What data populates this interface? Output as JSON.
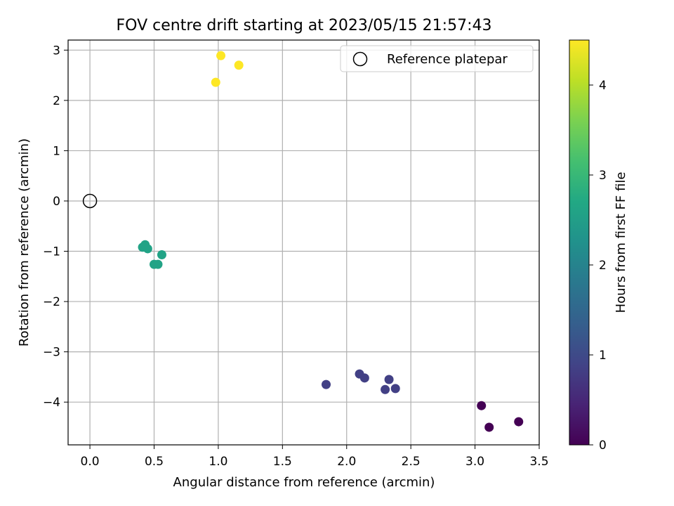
{
  "chart_data": {
    "type": "scatter",
    "title": "FOV centre drift starting at 2023/05/15 21:57:43",
    "xlabel": "Angular distance from reference (arcmin)",
    "ylabel": "Rotation from reference (arcmin)",
    "xlim": [
      -0.17,
      3.5
    ],
    "ylim": [
      -4.85,
      3.2
    ],
    "xticks": [
      0.0,
      0.5,
      1.0,
      1.5,
      2.0,
      2.5,
      3.0,
      3.5
    ],
    "xtick_labels": [
      "0.0",
      "0.5",
      "1.0",
      "1.5",
      "2.0",
      "2.5",
      "3.0",
      "3.5"
    ],
    "yticks": [
      -4,
      -3,
      -2,
      -1,
      0,
      1,
      2,
      3
    ],
    "ytick_labels": [
      "−4",
      "−3",
      "−2",
      "−1",
      "0",
      "1",
      "2",
      "3"
    ],
    "grid": true,
    "legend": {
      "location": "upper right",
      "entries": [
        "Reference platepar"
      ]
    },
    "reference_point": {
      "label": "Reference platepar",
      "x": 0.0,
      "y": 0.0
    },
    "colorbar": {
      "label": "Hours from first FF file",
      "colormap": "viridis",
      "range": [
        0,
        4.5
      ],
      "ticks": [
        0,
        1,
        2,
        3,
        4
      ],
      "tick_labels": [
        "0",
        "1",
        "2",
        "3",
        "4"
      ]
    },
    "points": [
      {
        "x": 3.05,
        "y": -4.07,
        "hours": 0.0
      },
      {
        "x": 3.11,
        "y": -4.5,
        "hours": 0.0
      },
      {
        "x": 3.34,
        "y": -4.39,
        "hours": 0.0
      },
      {
        "x": 1.84,
        "y": -3.65,
        "hours": 0.85
      },
      {
        "x": 2.1,
        "y": -3.44,
        "hours": 0.85
      },
      {
        "x": 2.14,
        "y": -3.52,
        "hours": 0.85
      },
      {
        "x": 2.33,
        "y": -3.55,
        "hours": 0.85
      },
      {
        "x": 2.3,
        "y": -3.75,
        "hours": 0.85
      },
      {
        "x": 2.38,
        "y": -3.73,
        "hours": 0.85
      },
      {
        "x": 0.41,
        "y": -0.92,
        "hours": 2.6
      },
      {
        "x": 0.43,
        "y": -0.87,
        "hours": 2.6
      },
      {
        "x": 0.45,
        "y": -0.95,
        "hours": 2.6
      },
      {
        "x": 0.56,
        "y": -1.07,
        "hours": 2.6
      },
      {
        "x": 0.5,
        "y": -1.26,
        "hours": 2.6
      },
      {
        "x": 0.53,
        "y": -1.26,
        "hours": 2.6
      },
      {
        "x": 0.98,
        "y": 2.36,
        "hours": 4.5
      },
      {
        "x": 1.02,
        "y": 2.89,
        "hours": 4.5
      },
      {
        "x": 1.16,
        "y": 2.7,
        "hours": 4.5
      }
    ]
  }
}
